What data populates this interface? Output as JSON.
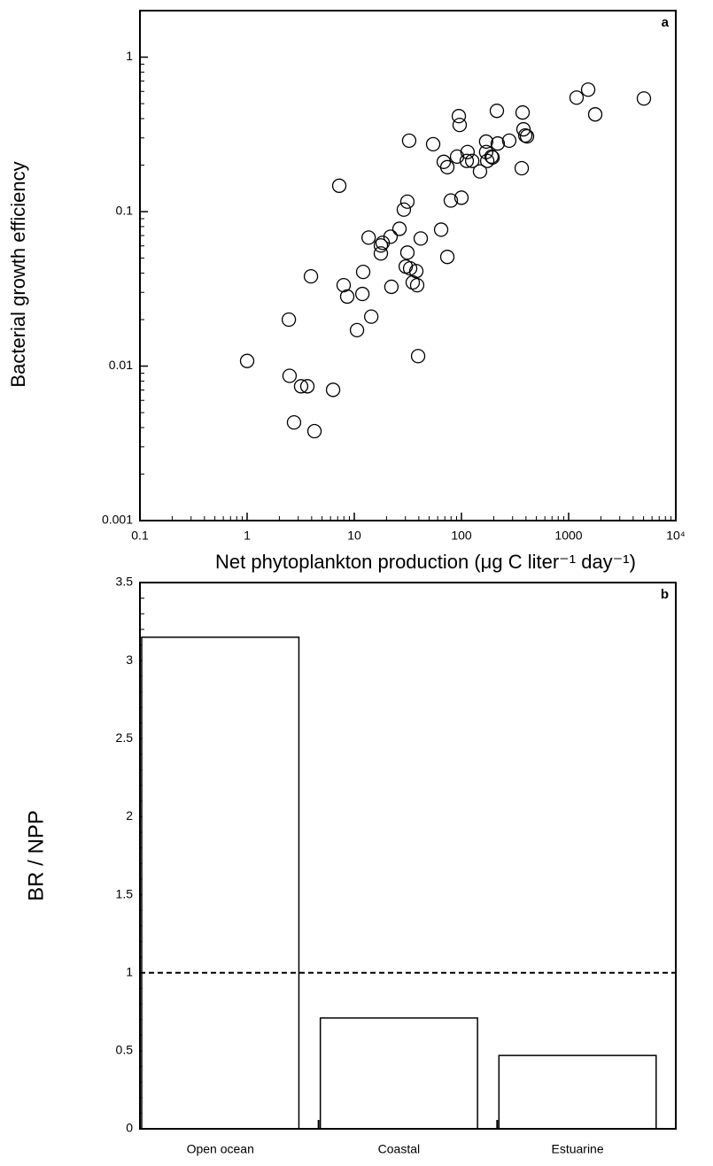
{
  "chart_data": [
    {
      "type": "scatter",
      "panel_label": "a",
      "x_label": "Net phytoplankton production (μg C liter⁻¹ day⁻¹)",
      "y_label": "Bacterial growth efficiency",
      "log_x": true,
      "log_y": true,
      "minor_ticks": true,
      "color": "#000000",
      "xlim": [
        0.1,
        10000
      ],
      "ylim": [
        0.001,
        2
      ],
      "xticks": [
        0.1,
        1,
        10,
        100,
        1000,
        {
          "value": 10000,
          "label": "10⁴"
        }
      ],
      "yticks": [
        0.001,
        0.01,
        0.1,
        1
      ],
      "x": [
        1,
        2.45,
        2.49,
        2.74,
        3.19,
        3.65,
        4.25,
        3.94,
        7.24,
        6.34,
        7.96,
        8.59,
        10.6,
        11.9,
        12.1,
        14.4,
        13.6,
        17.7,
        18.4,
        17.7,
        21.8,
        22.2,
        26.4,
        29.0,
        31.3,
        30.2,
        31.3,
        32.5,
        33.2,
        35.1,
        37.9,
        38.6,
        39.4,
        41.7,
        54.4,
        64.6,
        68.4,
        73.8,
        73.8,
        79.6,
        91.0,
        94.5,
        96.2,
        100,
        112,
        114,
        126,
        149,
        191,
        174,
        170,
        170,
        195,
        214,
        218,
        279,
        365,
        372,
        379,
        394,
        409,
        1186,
        1521,
        1770,
        5040
      ],
      "values": [
        0.0108,
        0.02,
        0.00865,
        0.00432,
        0.0074,
        0.0074,
        0.00379,
        0.0381,
        0.147,
        0.00702,
        0.0334,
        0.0282,
        0.0171,
        0.0293,
        0.0407,
        0.0209,
        0.0679,
        0.0536,
        0.0628,
        0.0604,
        0.0688,
        0.0326,
        0.0774,
        0.103,
        0.116,
        0.0441,
        0.0543,
        0.288,
        0.0429,
        0.0348,
        0.0412,
        0.0334,
        0.0116,
        0.067,
        0.273,
        0.0764,
        0.21,
        0.0509,
        0.194,
        0.118,
        0.227,
        0.415,
        0.364,
        0.123,
        0.213,
        0.243,
        0.213,
        0.182,
        0.227,
        0.213,
        0.284,
        0.243,
        0.224,
        0.449,
        0.276,
        0.288,
        0.191,
        0.438,
        0.341,
        0.311,
        0.307,
        0.547,
        0.616,
        0.426,
        0.54
      ]
    },
    {
      "type": "bar",
      "panel_label": "b",
      "y_label": "BR / NPP",
      "minor_ticks": true,
      "color": "#ffffff",
      "categories": [
        "Open ocean",
        "Coastal",
        "Estuarine"
      ],
      "values": [
        3.15,
        0.71,
        0.47
      ],
      "reference_line": 1,
      "ylim": [
        0,
        3.5
      ],
      "yticks": [
        0,
        0.5,
        1,
        1.5,
        2,
        2.5,
        3,
        3.5
      ]
    }
  ]
}
